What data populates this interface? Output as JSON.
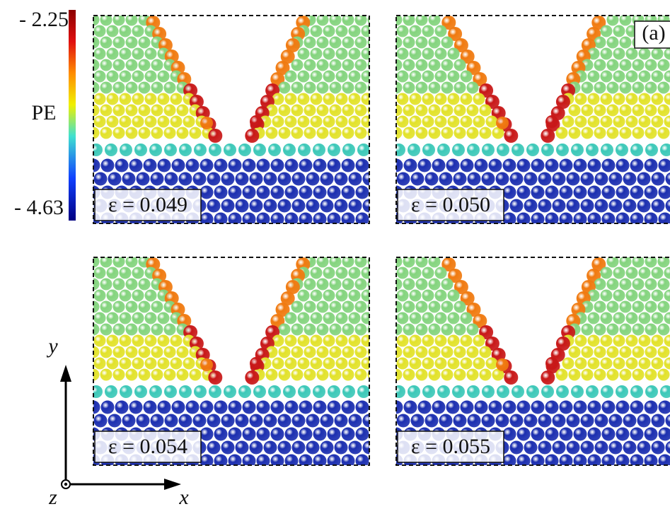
{
  "colorbar": {
    "title": "PE",
    "max_label": "- 2.25",
    "min_label": "- 4.63"
  },
  "panel_tag": "(a)",
  "panels": [
    {
      "label": "ε = 0.049"
    },
    {
      "label": "ε = 0.050"
    },
    {
      "label": "ε = 0.054"
    },
    {
      "label": "ε = 0.055"
    }
  ],
  "axes": {
    "x": "x",
    "y": "y",
    "z": "z"
  }
}
